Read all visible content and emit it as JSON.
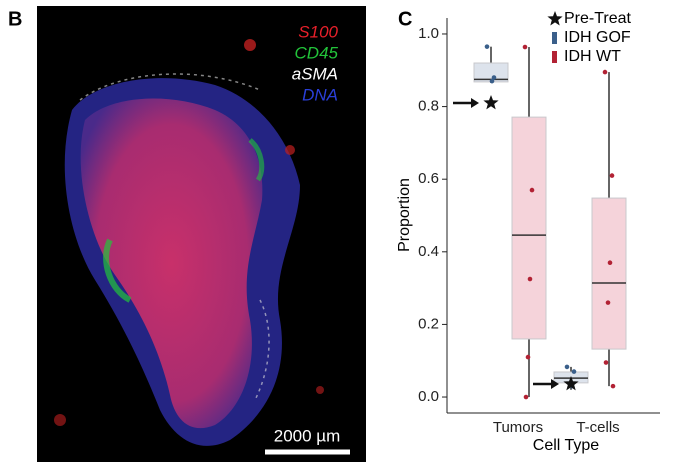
{
  "panel_b": {
    "label": "B",
    "channels": [
      {
        "name": "S100",
        "color": "#e8202a"
      },
      {
        "name": "CD45",
        "color": "#22c43a"
      },
      {
        "name": "aSMA",
        "color": "#ffffff"
      },
      {
        "name": "DNA",
        "color": "#2a3fd8"
      }
    ],
    "scale_bar": "2000 µm"
  },
  "chart_data": {
    "type": "box",
    "panel_label": "C",
    "xlabel": "Cell Type",
    "ylabel": "Proportion",
    "categories": [
      "Tumors",
      "T-cells"
    ],
    "ylim": [
      -0.044,
      1.044
    ],
    "yticks": [
      {
        "value": 0,
        "label": "0.0"
      },
      0.2,
      0.4,
      0.6,
      0.8,
      {
        "value": 1,
        "label": "1.0"
      }
    ],
    "series": [
      {
        "name": "IDH GOF",
        "color": "#3a5f8a",
        "fill": "#dde3ec",
        "boxes": [
          {
            "min": 0.865,
            "q1": 0.868,
            "median": 0.875,
            "q3": 0.92,
            "max": 0.965,
            "points": [
              0.965,
              0.88,
              0.87
            ]
          },
          {
            "min": 0.02,
            "q1": 0.039,
            "median": 0.052,
            "q3": 0.069,
            "max": 0.083,
            "points": [
              0.083,
              0.07,
              0.03
            ]
          }
        ]
      },
      {
        "name": "IDH WT",
        "color": "#b22234",
        "fill": "#f5d3da",
        "boxes": [
          {
            "min": 0.0,
            "q1": 0.16,
            "median": 0.446,
            "q3": 0.771,
            "max": 0.964,
            "points": [
              0.964,
              0.57,
              0.325,
              0.11,
              0.0
            ]
          },
          {
            "min": 0.03,
            "q1": 0.132,
            "median": 0.314,
            "q3": 0.548,
            "max": 0.895,
            "points": [
              0.895,
              0.61,
              0.37,
              0.26,
              0.095,
              0.03
            ]
          }
        ]
      }
    ],
    "marker": {
      "name": "Pre-Treat",
      "values": [
        0.81,
        0.036
      ]
    }
  }
}
